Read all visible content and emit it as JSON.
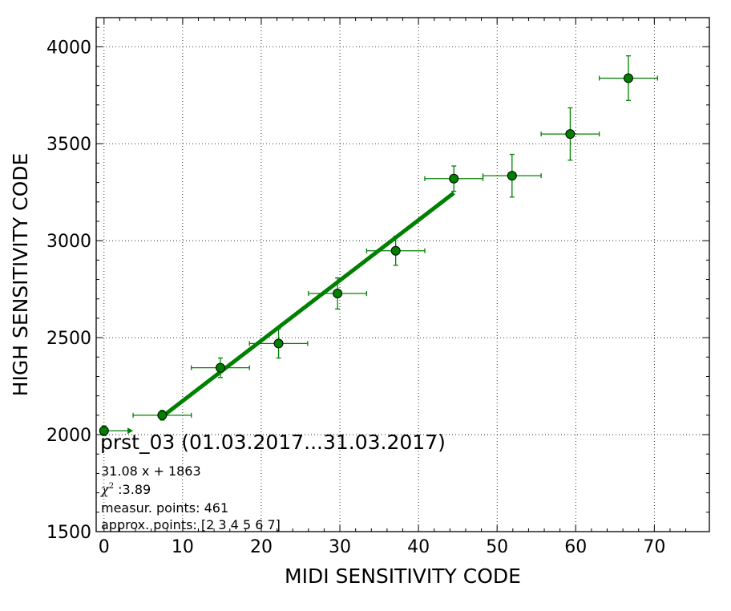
{
  "chart_data": {
    "type": "scatter",
    "xlabel": "MIDI SENSITIVITY CODE",
    "ylabel": "HIGH SENSITIVITY CODE",
    "xlim": [
      -1,
      77
    ],
    "ylim": [
      1500,
      4150
    ],
    "x_ticks": [
      0,
      10,
      20,
      30,
      40,
      50,
      60,
      70
    ],
    "y_ticks": [
      1500,
      2000,
      2500,
      3000,
      3500,
      4000
    ],
    "x_tick_labels": [
      "0",
      "10",
      "20",
      "30",
      "40",
      "50",
      "60",
      "70"
    ],
    "y_tick_labels": [
      "1500",
      "2000",
      "2500",
      "3000",
      "3500",
      "4000"
    ],
    "grid": true,
    "colors": {
      "series": "#008000",
      "marker_edge": "#000000"
    },
    "points": [
      {
        "x": 0.0,
        "y": 2020,
        "xerr": 0,
        "yerr": 25,
        "arrow_to_x": 3.7
      },
      {
        "x": 7.4,
        "y": 2100,
        "xerr": 3.7,
        "yerr": 25
      },
      {
        "x": 14.8,
        "y": 2345,
        "xerr": 3.7,
        "yerr": 50
      },
      {
        "x": 22.2,
        "y": 2470,
        "xerr": 3.7,
        "yerr": 75
      },
      {
        "x": 29.7,
        "y": 2728,
        "xerr": 3.7,
        "yerr": 80
      },
      {
        "x": 37.1,
        "y": 2948,
        "xerr": 3.7,
        "yerr": 75
      },
      {
        "x": 44.5,
        "y": 3320,
        "xerr": 3.7,
        "yerr": 65
      },
      {
        "x": 51.9,
        "y": 3335,
        "xerr": 3.7,
        "yerr": 110
      },
      {
        "x": 59.3,
        "y": 3550,
        "xerr": 3.7,
        "yerr": 135
      },
      {
        "x": 66.7,
        "y": 3838,
        "xerr": 3.7,
        "yerr": 115
      }
    ],
    "fit": {
      "slope": 31.08,
      "intercept": 1863,
      "x_range": [
        7.4,
        44.5
      ]
    },
    "annotation": {
      "title": "prst_03 (01.03.2017...31.03.2017)",
      "equation": "31.08 x + 1863",
      "chi_symbol": "χ",
      "chi_sup": "2",
      "chi_value": " :3.89",
      "measur_points": "measur. points: 461",
      "approx_points": "approx. points: [2 3 4 5 6 7]"
    }
  }
}
